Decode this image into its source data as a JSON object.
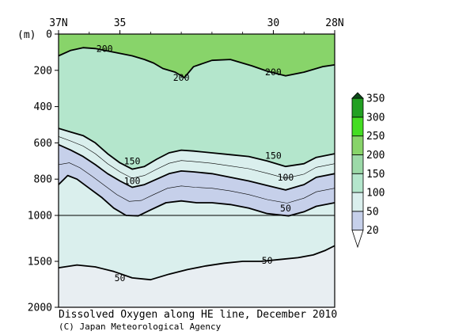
{
  "chart_data": {
    "type": "contour",
    "title": "Dissolved Oxygen along HE line, December 2010",
    "credit": "(C) Japan Meteorological Agency",
    "x_axis": {
      "range": [
        37,
        28
      ],
      "ticks": [
        {
          "value": 37,
          "label": "37N"
        },
        {
          "value": 35,
          "label": "35"
        },
        {
          "value": 30,
          "label": "30"
        },
        {
          "value": 28,
          "label": "28N"
        }
      ]
    },
    "y_axis": {
      "unit": "(m)",
      "range": [
        0,
        2000
      ],
      "scale_break": 1000,
      "ticks": [
        {
          "value": 0,
          "label": "0"
        },
        {
          "value": 200,
          "label": "200"
        },
        {
          "value": 400,
          "label": "400"
        },
        {
          "value": 600,
          "label": "600"
        },
        {
          "value": 800,
          "label": "800"
        },
        {
          "value": 1000,
          "label": "1000"
        },
        {
          "value": 1500,
          "label": "1500"
        },
        {
          "value": 2000,
          "label": "2000"
        }
      ]
    },
    "colorbar": {
      "levels": [
        {
          "label": "20",
          "color": "#ffffff"
        },
        {
          "label": "50",
          "color": "#c6d0ea"
        },
        {
          "label": "100",
          "color": "#daefed"
        },
        {
          "label": "150",
          "color": "#b4e6cc"
        },
        {
          "label": "200",
          "color": "#9cd9a8"
        },
        {
          "label": "250",
          "color": "#88d46a"
        },
        {
          "label": "300",
          "color": "#44dd22"
        },
        {
          "label": "350",
          "color": "#22a022"
        },
        {
          "label": "",
          "color": "#0e4a1a"
        }
      ]
    },
    "contours": [
      {
        "level": 200,
        "bold": true,
        "points": [
          [
            37,
            120
          ],
          [
            36.6,
            90
          ],
          [
            36.2,
            75
          ],
          [
            35.8,
            80
          ],
          [
            35.2,
            100
          ],
          [
            34.6,
            120
          ],
          [
            34.2,
            140
          ],
          [
            33.9,
            160
          ],
          [
            33.6,
            190
          ],
          [
            33.2,
            210
          ],
          [
            32.9,
            240
          ],
          [
            32.6,
            180
          ],
          [
            32.0,
            145
          ],
          [
            31.4,
            140
          ],
          [
            30.7,
            175
          ],
          [
            30.2,
            205
          ],
          [
            29.6,
            230
          ],
          [
            29.0,
            210
          ],
          [
            28.4,
            180
          ],
          [
            28,
            170
          ]
        ],
        "labels": [
          {
            "x": 35.5,
            "y": 80,
            "text": "200"
          },
          {
            "x": 33.0,
            "y": 240,
            "text": "200"
          },
          {
            "x": 30.0,
            "y": 210,
            "text": "200"
          }
        ]
      },
      {
        "level": 150,
        "bold": true,
        "points": [
          [
            37,
            520
          ],
          [
            36.6,
            540
          ],
          [
            36.2,
            560
          ],
          [
            35.8,
            600
          ],
          [
            35.4,
            660
          ],
          [
            35.0,
            710
          ],
          [
            34.6,
            745
          ],
          [
            34.2,
            730
          ],
          [
            33.8,
            690
          ],
          [
            33.4,
            655
          ],
          [
            33.0,
            640
          ],
          [
            32.6,
            645
          ],
          [
            32.0,
            655
          ],
          [
            31.4,
            665
          ],
          [
            30.8,
            675
          ],
          [
            30.2,
            700
          ],
          [
            29.6,
            730
          ],
          [
            29.0,
            715
          ],
          [
            28.6,
            680
          ],
          [
            28,
            660
          ]
        ],
        "labels": [
          {
            "x": 34.6,
            "y": 700,
            "text": "150"
          },
          {
            "x": 30.0,
            "y": 670,
            "text": "150"
          }
        ]
      },
      {
        "level": 100,
        "bold": true,
        "points": [
          [
            37,
            610
          ],
          [
            36.6,
            640
          ],
          [
            36.2,
            675
          ],
          [
            35.8,
            720
          ],
          [
            35.4,
            770
          ],
          [
            35.0,
            810
          ],
          [
            34.6,
            845
          ],
          [
            34.2,
            830
          ],
          [
            33.8,
            800
          ],
          [
            33.4,
            770
          ],
          [
            33.0,
            755
          ],
          [
            32.6,
            760
          ],
          [
            32.0,
            770
          ],
          [
            31.4,
            790
          ],
          [
            30.8,
            810
          ],
          [
            30.2,
            835
          ],
          [
            29.6,
            860
          ],
          [
            29.0,
            830
          ],
          [
            28.6,
            790
          ],
          [
            28,
            770
          ]
        ],
        "labels": [
          {
            "x": 34.6,
            "y": 810,
            "text": "100"
          },
          {
            "x": 29.6,
            "y": 790,
            "text": "100"
          }
        ]
      },
      {
        "level": 50,
        "bold": true,
        "points": [
          [
            37,
            830
          ],
          [
            36.7,
            780
          ],
          [
            36.4,
            800
          ],
          [
            36.0,
            850
          ],
          [
            35.6,
            900
          ],
          [
            35.2,
            960
          ],
          [
            34.8,
            1000
          ],
          [
            34.4,
            1005
          ],
          [
            34.0,
            970
          ],
          [
            33.5,
            930
          ],
          [
            33.0,
            920
          ],
          [
            32.5,
            930
          ],
          [
            32.0,
            930
          ],
          [
            31.4,
            940
          ],
          [
            30.8,
            960
          ],
          [
            30.2,
            990
          ],
          [
            29.5,
            1005
          ],
          [
            29.0,
            980
          ],
          [
            28.6,
            950
          ],
          [
            28,
            930
          ]
        ],
        "labels": [
          {
            "x": 29.6,
            "y": 960,
            "text": "50"
          }
        ]
      },
      {
        "level": 50,
        "bold": true,
        "points": [
          [
            37,
            1570
          ],
          [
            36.4,
            1540
          ],
          [
            35.8,
            1560
          ],
          [
            35.2,
            1610
          ],
          [
            34.6,
            1680
          ],
          [
            34.0,
            1700
          ],
          [
            33.4,
            1640
          ],
          [
            32.8,
            1590
          ],
          [
            32.2,
            1550
          ],
          [
            31.6,
            1520
          ],
          [
            31.0,
            1500
          ],
          [
            30.4,
            1500
          ],
          [
            29.8,
            1480
          ],
          [
            29.2,
            1460
          ],
          [
            28.7,
            1430
          ],
          [
            28.3,
            1380
          ],
          [
            28,
            1330
          ]
        ],
        "labels": [
          {
            "x": 35.0,
            "y": 1680,
            "text": "50"
          },
          {
            "x": 30.2,
            "y": 1490,
            "text": "50"
          }
        ]
      }
    ]
  }
}
